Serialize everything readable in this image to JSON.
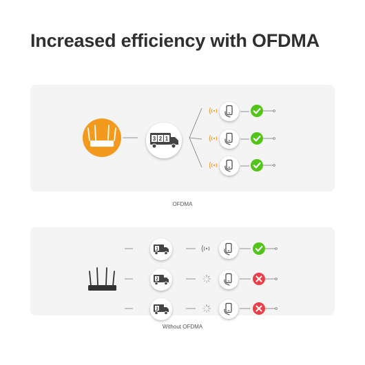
{
  "title": "Increased efficiency with OFDMA",
  "sections": [
    {
      "id": "ofdma",
      "caption": "OFDMA",
      "router_icon": "wifi-router-icon",
      "truck_icon": "truck-icon",
      "truck_cargo": [
        "3",
        "2",
        "1"
      ],
      "device_icon": "phone-icon",
      "devices": [
        {
          "status": "success",
          "status_icon": "check-icon",
          "signal": "strong"
        },
        {
          "status": "success",
          "status_icon": "check-icon",
          "signal": "strong"
        },
        {
          "status": "success",
          "status_icon": "check-icon",
          "signal": "strong"
        }
      ]
    },
    {
      "id": "without-ofdma",
      "caption": "Without OFDMA",
      "router_icon": "wifi-router-icon",
      "truck_icon": "truck-icon",
      "device_icon": "phone-icon",
      "lanes": [
        {
          "truck_cargo": "1",
          "signal": "strong",
          "status": "success",
          "status_icon": "check-icon"
        },
        {
          "truck_cargo": "2",
          "signal": "loading",
          "status": "fail",
          "status_icon": "cross-icon"
        },
        {
          "truck_cargo": "3",
          "signal": "loading",
          "status": "fail",
          "status_icon": "cross-icon"
        }
      ]
    }
  ],
  "colors": {
    "router_bg": "#f39a1e",
    "success": "#52c41a",
    "fail": "#e8414a",
    "signal": "#f39a1e",
    "panel": "#f4f4f4"
  }
}
